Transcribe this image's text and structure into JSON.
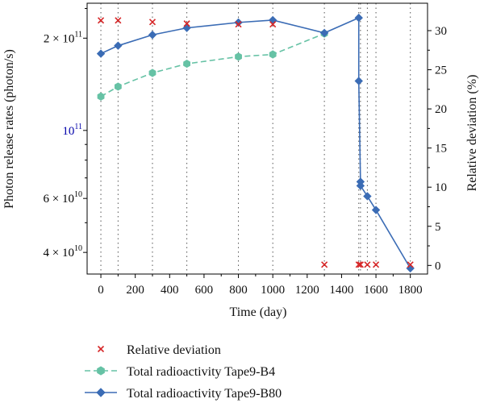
{
  "chart_data": {
    "type": "line",
    "xlabel": "Time (day)",
    "ylabel_left": "Photon release rates (photon/s)",
    "ylabel_right": "Relative deviation (%)",
    "x_ticks": [
      0,
      200,
      400,
      600,
      800,
      1000,
      1200,
      1400,
      1600,
      1800
    ],
    "xlim": [
      -80,
      1900
    ],
    "left_axis": {
      "scale": "log",
      "ylim": [
        34000000000,
        260000000000
      ],
      "ticks": [
        {
          "value": 40000000000,
          "label": "4 × 10",
          "exp": "10"
        },
        {
          "value": 60000000000,
          "label": "6 × 10",
          "exp": "10"
        },
        {
          "value": 100000000000,
          "label": "10",
          "exp": "11"
        },
        {
          "value": 200000000000,
          "label": "2 × 10",
          "exp": "11"
        }
      ],
      "tick_label_colors": {
        "default": "#000000",
        "highlight": "#0000aa"
      }
    },
    "right_axis": {
      "scale": "linear",
      "ylim": [
        -1.1,
        33.5
      ],
      "ticks": [
        0,
        5,
        10,
        15,
        20,
        25,
        30
      ]
    },
    "vertical_gridlines": [
      0,
      100,
      300,
      500,
      800,
      1000,
      1300,
      1500,
      1510,
      1550,
      1600,
      1800
    ],
    "series": [
      {
        "name": "Relative deviation",
        "axis": "right",
        "style": "markers",
        "marker": "x",
        "color": "#d62728",
        "x": [
          0,
          100,
          300,
          500,
          800,
          1000,
          1300,
          1500,
          1510,
          1550,
          1600,
          1800
        ],
        "y": [
          31.3,
          31.3,
          31.1,
          30.9,
          30.8,
          30.8,
          0.1,
          0.1,
          0.1,
          0.1,
          0.1,
          0.1
        ]
      },
      {
        "name": "Total radioactivity Tape9-B4",
        "axis": "left",
        "style": "dashed-line-markers",
        "marker": "hexagon",
        "color": "#66c2a5",
        "x": [
          0,
          100,
          300,
          500,
          800,
          1000,
          1300
        ],
        "y": [
          129000000000,
          139000000000,
          154000000000,
          165000000000,
          174000000000,
          177000000000,
          207000000000
        ]
      },
      {
        "name": "Total radioactivity Tape9-B80",
        "axis": "left",
        "style": "solid-line-markers",
        "marker": "diamond",
        "color": "#3b6cb5",
        "x": [
          0,
          100,
          300,
          500,
          800,
          1000,
          1300,
          1500,
          1500,
          1510,
          1510,
          1550,
          1600,
          1800
        ],
        "y": [
          178000000000,
          189000000000,
          205000000000,
          216000000000,
          225000000000,
          229000000000,
          208000000000,
          233000000000,
          145000000000,
          68000000000,
          66000000000,
          61000000000,
          55000000000,
          35500000000
        ]
      }
    ],
    "legend": {
      "placement": "below",
      "entries": [
        "Relative deviation",
        "Total radioactivity Tape9-B4",
        "Total radioactivity Tape9-B80"
      ]
    }
  }
}
